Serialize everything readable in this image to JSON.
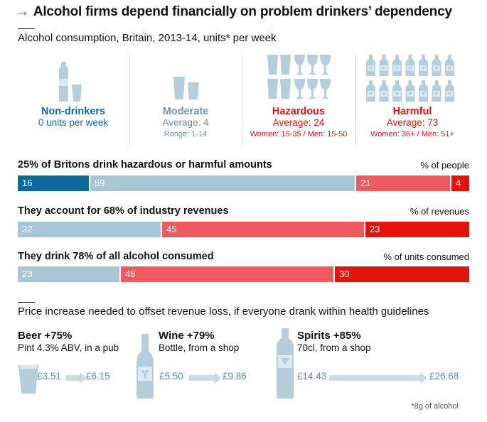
{
  "title": "Alcohol firms depend financially on problem drinkers’ dependency",
  "title_arrow": "→",
  "colors": {
    "nondrinker": "#0f6a9c",
    "moderate": "#a9c6d8",
    "hazardous": "#ee5a60",
    "harmful": "#e3120b",
    "icon": "#b4cedd",
    "text_blue": "#0f6a9c",
    "text_grey_blue": "#6f92ab",
    "text_red": "#e3120b"
  },
  "consumption": {
    "title": "Alcohol consumption, Britain, 2013-14, units* per week",
    "categories": [
      {
        "name": "Non-drinkers",
        "avg": "0 units per week",
        "range": ""
      },
      {
        "name": "Moderate",
        "avg": "Average: 4",
        "range": "Range: 1-14"
      },
      {
        "name": "Hazardous",
        "avg": "Average: 24",
        "range": "Women: 15-35 / Men: 15-50"
      },
      {
        "name": "Harmful",
        "avg": "Average: 73",
        "range": "Women: 36+ / Men: 51+"
      }
    ]
  },
  "chart_data": {
    "type": "bar",
    "stacked": true,
    "orientation": "horizontal",
    "series_names": [
      "Non-drinkers",
      "Moderate",
      "Hazardous",
      "Harmful"
    ],
    "bars": [
      {
        "label": "25% of Britons drink hazardous or harmful amounts",
        "unit": "% of people",
        "values": [
          16,
          59,
          21,
          4
        ],
        "labels": [
          "16",
          "59",
          "21",
          "4"
        ]
      },
      {
        "label": "They account for 68% of industry revenues",
        "unit": "% of revenues",
        "values": [
          0,
          32,
          45,
          23
        ],
        "labels": [
          "",
          "32",
          "45",
          "23"
        ]
      },
      {
        "label": "They drink 78% of all alcohol consumed",
        "unit": "% of units consumed",
        "values": [
          0,
          23,
          48,
          30
        ],
        "labels": [
          "",
          "23",
          "48",
          "30"
        ]
      }
    ],
    "xlim": [
      0,
      100
    ]
  },
  "price": {
    "title": "Price increase needed to offset revenue loss, if everyone drank within health guidelines",
    "items": [
      {
        "name": "Beer +75%",
        "desc": "Pint 4.3% ABV, in a pub",
        "from": "£3.51",
        "to": "£6.15",
        "icon": "pint-glass-icon"
      },
      {
        "name": "Wine +79%",
        "desc": "Bottle, from a shop",
        "from": "£5.50",
        "to": "£9.86",
        "icon": "wine-bottle-icon"
      },
      {
        "name": "Spirits +85%",
        "desc": "70cl, from a shop",
        "from": "£14.43",
        "to": "£26.68",
        "icon": "vodka-bottle-icon"
      }
    ]
  },
  "footnote": "*8g of alcohol"
}
